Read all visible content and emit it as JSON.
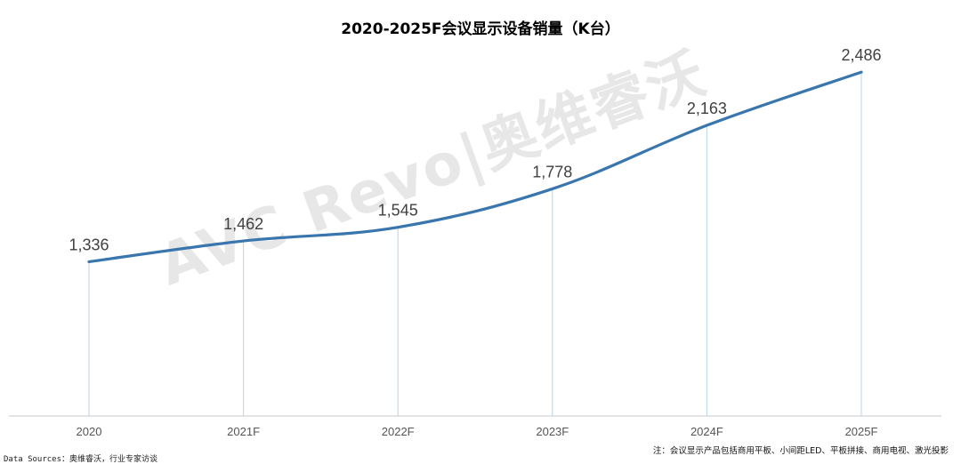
{
  "chart_data": {
    "type": "line",
    "title": "2020-2025F会议显示设备销量（K台）",
    "categories": [
      "2020",
      "2021F",
      "2022F",
      "2023F",
      "2024F",
      "2025F"
    ],
    "values": [
      1336,
      1462,
      1545,
      1778,
      2163,
      2486
    ],
    "data_labels": [
      "1,336",
      "1,462",
      "1,545",
      "1,778",
      "2,163",
      "2,486"
    ],
    "xlabel": "",
    "ylabel": "",
    "ylim": [
      400,
      2600
    ],
    "smooth": true,
    "grid": false,
    "legend": "none",
    "line_color": "#3a76ae",
    "drop_line_color": "#b9d3e6",
    "axis_color": "#d4d4d4"
  },
  "watermark": "AVC Revo|奥维睿沃",
  "footer": {
    "source": "Data Sources：奥维睿沃，行业专家访谈",
    "note": "注：会议显示产品包括商用平板、小间距LED、平板拼接、商用电视、激光投影"
  }
}
